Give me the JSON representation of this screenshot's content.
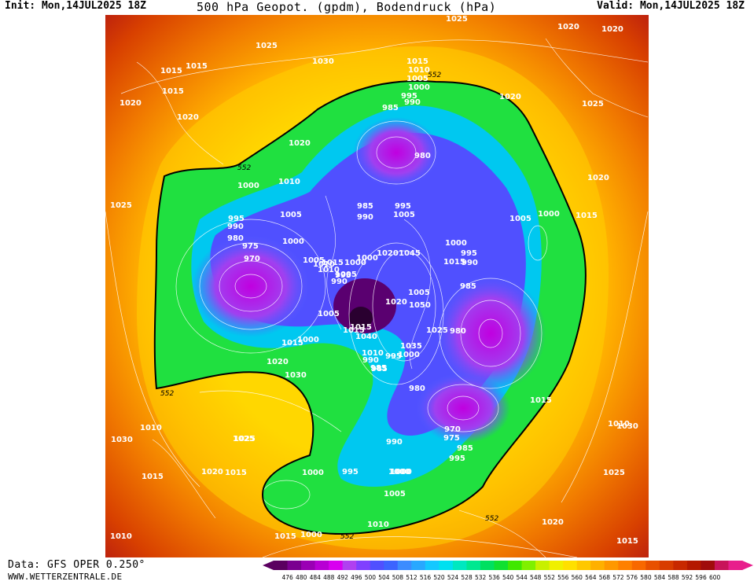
{
  "header": {
    "init": "Init: Mon,14JUL2025 18Z",
    "title": "500 hPa Geopot. (gpdm), Bodendruck (hPa)",
    "valid": "Valid: Mon,14JUL2025 18Z"
  },
  "footer": {
    "source": "Data: GFS OPER 0.250°",
    "website": "WWW.WETTERZENTRALE.DE"
  },
  "colorbar": {
    "ticks": [
      "476",
      "480",
      "484",
      "488",
      "492",
      "496",
      "500",
      "504",
      "508",
      "512",
      "516",
      "520",
      "524",
      "528",
      "532",
      "536",
      "540",
      "544",
      "548",
      "552",
      "556",
      "560",
      "564",
      "568",
      "572",
      "576",
      "580",
      "584",
      "588",
      "592",
      "596",
      "600"
    ],
    "colors": [
      "#5b0060",
      "#7a0090",
      "#9a00b4",
      "#b800d4",
      "#d800f0",
      "#b040f0",
      "#8040ff",
      "#5050ff",
      "#3c64ff",
      "#3c8cff",
      "#28a8ff",
      "#14c8ff",
      "#00e0f0",
      "#00e8c0",
      "#00e890",
      "#00e060",
      "#10e030",
      "#40e800",
      "#80f000",
      "#c8f000",
      "#f0f000",
      "#ffe000",
      "#ffc800",
      "#ffb000",
      "#ff9800",
      "#ff8000",
      "#f86800",
      "#e85000",
      "#d83c00",
      "#c82800",
      "#b41800",
      "#a00c0c",
      "#c8145a",
      "#e81e8c"
    ]
  },
  "contour_552_label": "552",
  "pressure_labels": [
    {
      "t": "1025"
    },
    {
      "t": "1020"
    },
    {
      "t": "1020"
    },
    {
      "t": "1025"
    },
    {
      "t": "1015"
    },
    {
      "t": "1015"
    },
    {
      "t": "1030"
    },
    {
      "t": "1015"
    },
    {
      "t": "1020"
    },
    {
      "t": "1015"
    },
    {
      "t": "1010"
    },
    {
      "t": "1005"
    },
    {
      "t": "1000"
    },
    {
      "t": "995"
    },
    {
      "t": "990"
    },
    {
      "t": "985"
    },
    {
      "t": "1020"
    },
    {
      "t": "1025"
    },
    {
      "t": "1020"
    },
    {
      "t": "1020"
    },
    {
      "t": "1020"
    },
    {
      "t": "980"
    },
    {
      "t": "1025"
    },
    {
      "t": "1000"
    },
    {
      "t": "1010"
    },
    {
      "t": "1005"
    },
    {
      "t": "995"
    },
    {
      "t": "990"
    },
    {
      "t": "980"
    },
    {
      "t": "975"
    },
    {
      "t": "970"
    },
    {
      "t": "985"
    },
    {
      "t": "995"
    },
    {
      "t": "1005"
    },
    {
      "t": "990"
    },
    {
      "t": "1000"
    },
    {
      "t": "1005"
    },
    {
      "t": "1015"
    },
    {
      "t": "1000"
    },
    {
      "t": "1015"
    },
    {
      "t": "1005"
    },
    {
      "t": "1010"
    },
    {
      "t": "1000"
    },
    {
      "t": "1010"
    },
    {
      "t": "1000"
    },
    {
      "t": "1000"
    },
    {
      "t": "995"
    },
    {
      "t": "990"
    },
    {
      "t": "1005"
    },
    {
      "t": "1020"
    },
    {
      "t": "1045"
    },
    {
      "t": "1015"
    },
    {
      "t": "995"
    },
    {
      "t": "990"
    },
    {
      "t": "985"
    },
    {
      "t": "1005"
    },
    {
      "t": "1050"
    },
    {
      "t": "1020"
    },
    {
      "t": "1015"
    },
    {
      "t": "1040"
    },
    {
      "t": "1035"
    },
    {
      "t": "1025"
    },
    {
      "t": "980"
    },
    {
      "t": "1000"
    },
    {
      "t": "995"
    },
    {
      "t": "985"
    },
    {
      "t": "990"
    },
    {
      "t": "1010"
    },
    {
      "t": "1015"
    },
    {
      "t": "1005"
    },
    {
      "t": "1000"
    },
    {
      "t": "1015"
    },
    {
      "t": "1020"
    },
    {
      "t": "1030"
    },
    {
      "t": "985"
    },
    {
      "t": "980"
    },
    {
      "t": "1015"
    },
    {
      "t": "1025"
    },
    {
      "t": "1010"
    },
    {
      "t": "1030"
    },
    {
      "t": "1010"
    },
    {
      "t": "1015"
    },
    {
      "t": "1025"
    },
    {
      "t": "1020"
    },
    {
      "t": "1015"
    },
    {
      "t": "1030"
    },
    {
      "t": "1000"
    },
    {
      "t": "995"
    },
    {
      "t": "970"
    },
    {
      "t": "975"
    },
    {
      "t": "985"
    },
    {
      "t": "995"
    },
    {
      "t": "990"
    },
    {
      "t": "1000"
    },
    {
      "t": "1005"
    },
    {
      "t": "1010"
    },
    {
      "t": "1025"
    },
    {
      "t": "1020"
    },
    {
      "t": "1015"
    },
    {
      "t": "1010"
    },
    {
      "t": "1015"
    },
    {
      "t": "1000"
    },
    {
      "t": "1000"
    }
  ]
}
